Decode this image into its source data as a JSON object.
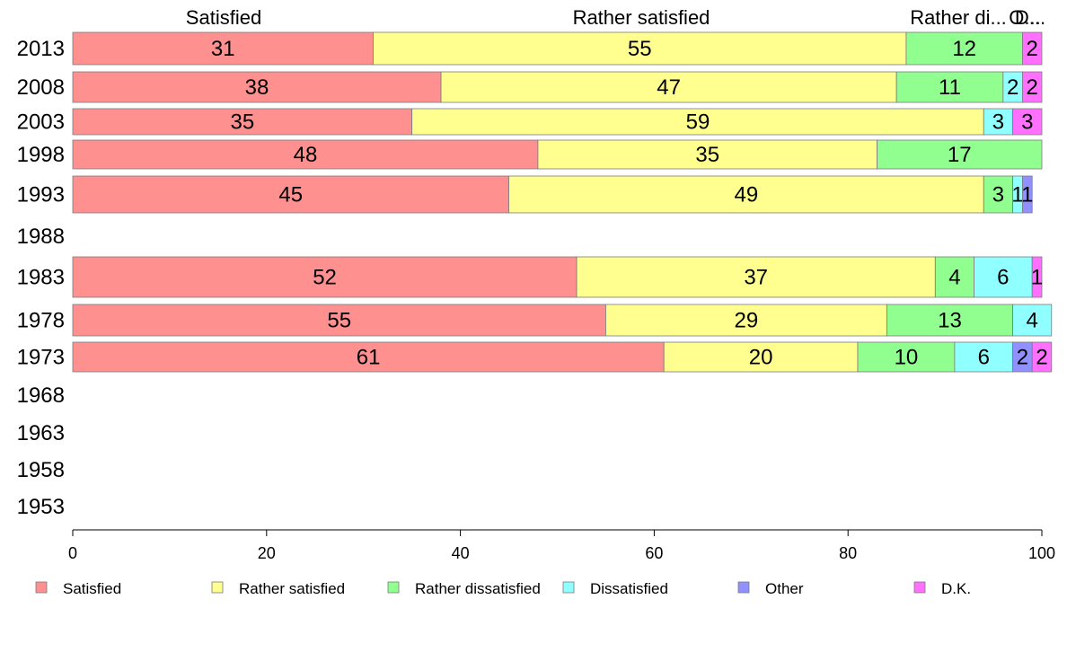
{
  "chart_data": {
    "type": "bar",
    "orientation": "horizontal",
    "stacked": true,
    "categories": [
      "2013",
      "2008",
      "2003",
      "1998",
      "1993",
      "1988",
      "1983",
      "1978",
      "1973",
      "1968",
      "1963",
      "1958",
      "1953"
    ],
    "series": [
      {
        "name": "Satisfied",
        "color": "#ff9090",
        "values": [
          31,
          38,
          35,
          48,
          45,
          null,
          52,
          55,
          61,
          null,
          null,
          null,
          null
        ]
      },
      {
        "name": "Rather satisfied",
        "color": "#ffff90",
        "values": [
          55,
          47,
          59,
          35,
          49,
          null,
          37,
          29,
          20,
          null,
          null,
          null,
          null
        ]
      },
      {
        "name": "Rather dissatisfied",
        "color": "#90ff90",
        "values": [
          12,
          11,
          0,
          17,
          3,
          null,
          4,
          13,
          10,
          null,
          null,
          null,
          null
        ]
      },
      {
        "name": "Dissatisfied",
        "color": "#90ffff",
        "values": [
          0,
          2,
          3,
          0,
          1,
          null,
          6,
          4,
          6,
          null,
          null,
          null,
          null
        ]
      },
      {
        "name": "Other",
        "color": "#9090ff",
        "values": [
          0,
          0,
          0,
          0,
          1,
          null,
          0,
          0,
          2,
          null,
          null,
          null,
          null
        ]
      },
      {
        "name": "D.K.",
        "color": "#ff70ff",
        "values": [
          2,
          2,
          3,
          0,
          0,
          null,
          1,
          0,
          2,
          null,
          null,
          null,
          null
        ]
      }
    ],
    "top_labels": [
      "Satisfied",
      "Rather satisfied",
      "Rather di...",
      "D...",
      "O..."
    ],
    "xlim": [
      0,
      100
    ],
    "xticks": [
      "0",
      "20",
      "40",
      "60",
      "80",
      "100"
    ],
    "legend_position": "bottom",
    "grid": false
  }
}
